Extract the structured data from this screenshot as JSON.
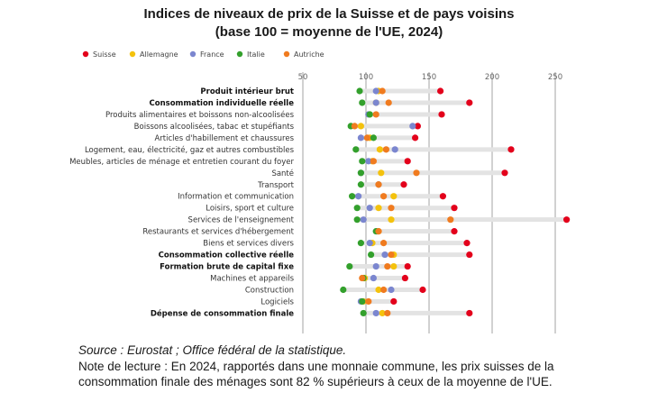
{
  "title_line1": "Indices de niveaux de prix de la Suisse et de pays voisins",
  "title_line2": "(base 100 = moyenne de l'UE, 2024)",
  "source": "Source : Eurostat ; Office fédéral de la statistique.",
  "note": "Note de lecture : En 2024, rapportés dans une monnaie commune, les prix suisses de la consommation finale des ménages sont 82 % supérieurs à ceux de la moyenne de l'UE.",
  "chart_data": {
    "type": "dot-plot",
    "title": "Indices de niveaux de prix de la Suisse et de pays voisins (base 100 = moyenne de l'UE, 2024)",
    "xlim": [
      50,
      250
    ],
    "xticks": [
      50,
      100,
      150,
      200,
      250
    ],
    "gridlines": true,
    "legend_position": "top-left",
    "categories": [
      {
        "label": "Produit intérieur brut",
        "bold": true
      },
      {
        "label": "Consommation individuelle réelle",
        "bold": true
      },
      {
        "label": "Produits alimentaires et boissons non-alcoolisées",
        "bold": false
      },
      {
        "label": "Boissons alcoolisées, tabac et stupéfiants",
        "bold": false
      },
      {
        "label": "Articles d'habillement et chaussures",
        "bold": false
      },
      {
        "label": "Logement, eau, électricité, gaz et autres combustibles",
        "bold": false
      },
      {
        "label": "Meubles, articles de ménage et entretien courant du foyer",
        "bold": false
      },
      {
        "label": "Santé",
        "bold": false
      },
      {
        "label": "Transport",
        "bold": false
      },
      {
        "label": "Information et communication",
        "bold": false
      },
      {
        "label": "Loisirs, sport et culture",
        "bold": false
      },
      {
        "label": "Services de l'enseignement",
        "bold": false
      },
      {
        "label": "Restaurants et services d'hébergement",
        "bold": false
      },
      {
        "label": "Biens et services divers",
        "bold": false
      },
      {
        "label": "Consommation collective réelle",
        "bold": true
      },
      {
        "label": "Formation brute de capital fixe",
        "bold": true
      },
      {
        "label": "Machines et appareils",
        "bold": false
      },
      {
        "label": "Construction",
        "bold": false
      },
      {
        "label": "Logiciels",
        "bold": false
      },
      {
        "label": "Dépense de consommation finale",
        "bold": true
      }
    ],
    "series": [
      {
        "name": "Suisse",
        "color": "#e3001b",
        "values": [
          159,
          182,
          160,
          141,
          139,
          215,
          133,
          210,
          130,
          161,
          170,
          259,
          170,
          180,
          182,
          133,
          131,
          145,
          122,
          182
        ]
      },
      {
        "name": "Allemagne",
        "color": "#f4c20d",
        "values": [
          110,
          108,
          103,
          96,
          103,
          111,
          105,
          112,
          110,
          122,
          110,
          120,
          110,
          105,
          122,
          122,
          99,
          110,
          98,
          113
        ]
      },
      {
        "name": "France",
        "color": "#7b86cf",
        "values": [
          108,
          108,
          102,
          137,
          96,
          123,
          102,
          96,
          110,
          94,
          103,
          98,
          109,
          103,
          115,
          108,
          106,
          120,
          96,
          108
        ]
      },
      {
        "name": "Italie",
        "color": "#33a02c",
        "values": [
          95,
          97,
          103,
          88,
          106,
          92,
          97,
          96,
          96,
          89,
          93,
          93,
          108,
          96,
          104,
          87,
          98,
          82,
          97,
          98
        ]
      },
      {
        "name": "Autriche",
        "color": "#f07b1f",
        "values": [
          113,
          118,
          108,
          91,
          101,
          116,
          106,
          140,
          110,
          114,
          120,
          167,
          110,
          114,
          120,
          117,
          97,
          114,
          102,
          117
        ]
      }
    ]
  }
}
